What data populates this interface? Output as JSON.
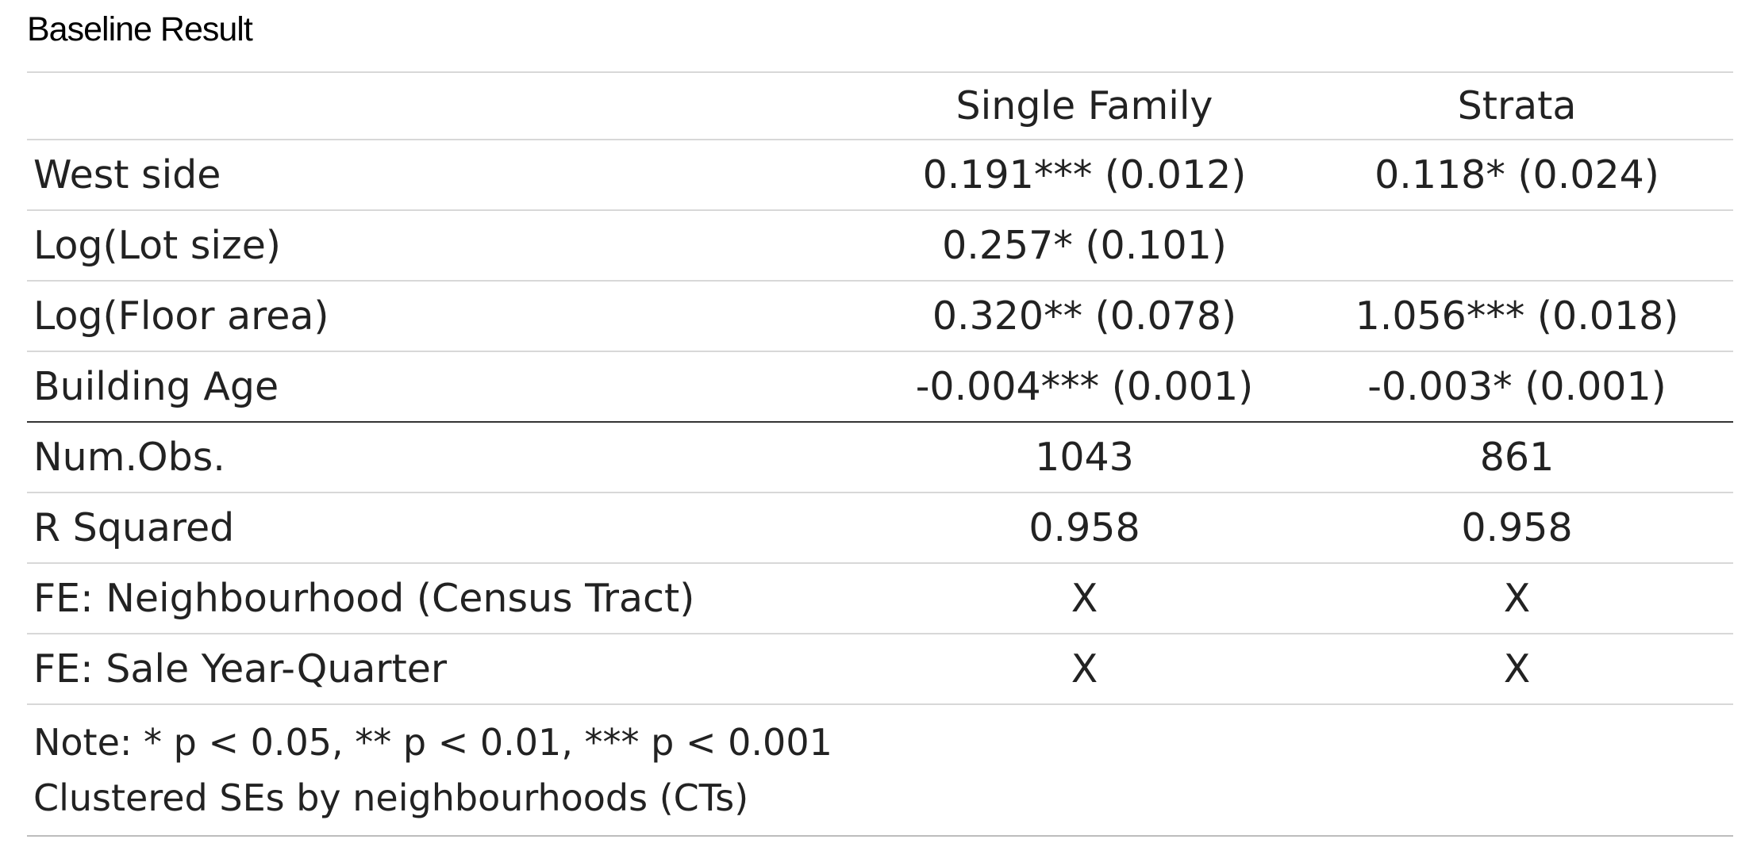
{
  "caption": "Baseline Result",
  "table": {
    "columns": [
      "",
      "Single Family",
      "Strata"
    ],
    "coefficient_rows": [
      {
        "label": "West side",
        "single_family": "0.191*** (0.012)",
        "strata": "0.118* (0.024)"
      },
      {
        "label": "Log(Lot size)",
        "single_family": "0.257* (0.101)",
        "strata": ""
      },
      {
        "label": "Log(Floor area)",
        "single_family": "0.320** (0.078)",
        "strata": "1.056*** (0.018)"
      },
      {
        "label": "Building Age",
        "single_family": "-0.004*** (0.001)",
        "strata": "-0.003* (0.001)"
      }
    ],
    "stat_rows": [
      {
        "label": "Num.Obs.",
        "single_family": "1043",
        "strata": "861"
      },
      {
        "label": "R Squared",
        "single_family": "0.958",
        "strata": "0.958"
      },
      {
        "label": "FE: Neighbourhood (Census Tract)",
        "single_family": "X",
        "strata": "X"
      },
      {
        "label": "FE: Sale Year-Quarter",
        "single_family": "X",
        "strata": "X"
      }
    ],
    "notes": [
      "Note: * p < 0.05, ** p < 0.01, *** p < 0.001",
      "Clustered SEs by neighbourhoods (CTs)"
    ]
  }
}
